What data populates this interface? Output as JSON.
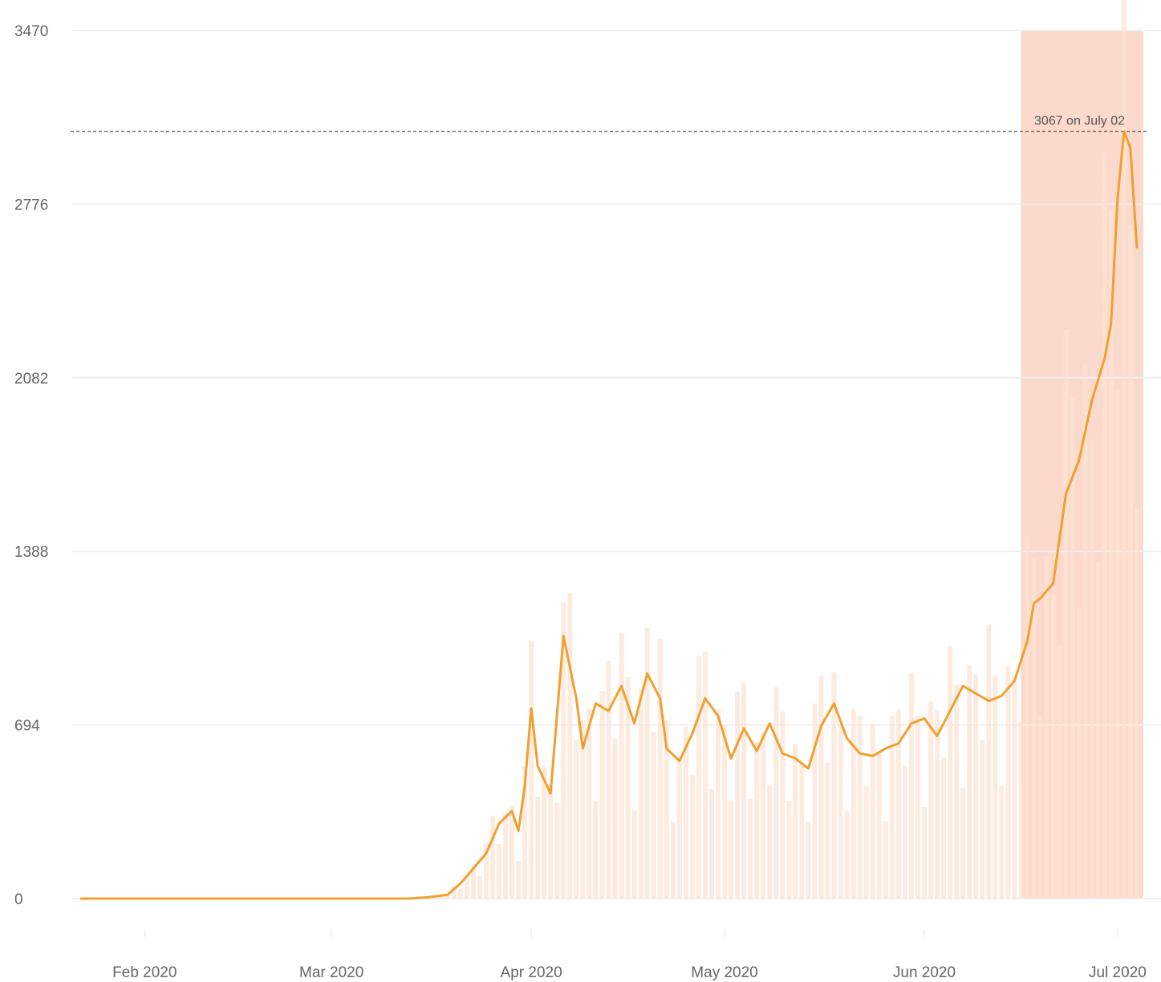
{
  "chart_data": {
    "type": "line",
    "title": "",
    "xlabel": "",
    "ylabel": "",
    "ylim": [
      0,
      3470
    ],
    "y_ticks": [
      "0",
      "694",
      "1388",
      "2082",
      "2776",
      "3470"
    ],
    "x_ticks": [
      "Feb 2020",
      "Mar 2020",
      "Apr 2020",
      "May 2020",
      "Jun 2020",
      "Jul 2020"
    ],
    "xlim": [
      "2020-01-22",
      "2020-07-05"
    ],
    "grid": "horizontal",
    "highlight_range": [
      "2020-06-16",
      "2020-07-05"
    ],
    "annotation": {
      "text": "3067 on July 02",
      "value": 3067
    },
    "colors": {
      "line": "#f0a030",
      "bars": "#fde3d3",
      "highlight": "#fbd9cc",
      "grid": "#f0f0f0",
      "ref_line": "#555555"
    },
    "series": [
      {
        "kind": "average",
        "x": [
          "2020-01-22",
          "2020-02-01",
          "2020-02-15",
          "2020-03-01",
          "2020-03-13",
          "2020-03-16",
          "2020-03-19",
          "2020-03-21",
          "2020-03-23",
          "2020-03-25",
          "2020-03-27",
          "2020-03-29",
          "2020-03-30",
          "2020-03-31",
          "2020-04-01",
          "2020-04-02",
          "2020-04-04",
          "2020-04-06",
          "2020-04-08",
          "2020-04-09",
          "2020-04-11",
          "2020-04-13",
          "2020-04-15",
          "2020-04-17",
          "2020-04-19",
          "2020-04-21",
          "2020-04-22",
          "2020-04-24",
          "2020-04-26",
          "2020-04-28",
          "2020-04-30",
          "2020-05-02",
          "2020-05-04",
          "2020-05-06",
          "2020-05-08",
          "2020-05-10",
          "2020-05-12",
          "2020-05-14",
          "2020-05-16",
          "2020-05-18",
          "2020-05-20",
          "2020-05-22",
          "2020-05-24",
          "2020-05-26",
          "2020-05-28",
          "2020-05-30",
          "2020-06-01",
          "2020-06-03",
          "2020-06-05",
          "2020-06-07",
          "2020-06-09",
          "2020-06-11",
          "2020-06-13",
          "2020-06-15",
          "2020-06-17",
          "2020-06-18",
          "2020-06-19",
          "2020-06-21",
          "2020-06-23",
          "2020-06-25",
          "2020-06-27",
          "2020-06-29",
          "2020-06-30",
          "2020-07-01",
          "2020-07-02",
          "2020-07-03",
          "2020-07-04"
        ],
        "y": [
          0,
          0,
          0,
          0,
          0,
          5,
          15,
          60,
          120,
          180,
          300,
          350,
          270,
          450,
          760,
          530,
          420,
          1050,
          800,
          600,
          780,
          750,
          850,
          700,
          900,
          800,
          600,
          550,
          660,
          800,
          730,
          560,
          680,
          590,
          700,
          580,
          560,
          520,
          690,
          780,
          640,
          580,
          570,
          600,
          620,
          700,
          720,
          650,
          750,
          850,
          820,
          790,
          810,
          870,
          1030,
          1180,
          1200,
          1260,
          1620,
          1750,
          1990,
          2160,
          2300,
          2800,
          3067,
          3000,
          2600
        ]
      }
    ]
  }
}
